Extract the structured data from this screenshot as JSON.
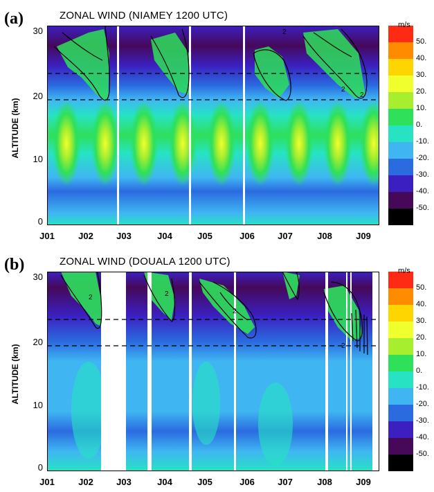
{
  "panels": [
    {
      "id": "a",
      "label": "(a)",
      "title": "ZONAL WIND (NIAMEY 1200 UTC)",
      "ylabel": "ALTITUDE (km)",
      "yticks": [
        "0",
        "10",
        "20",
        "30"
      ],
      "xticks": [
        "J01",
        "J02",
        "J03",
        "J04",
        "J05",
        "J06",
        "J07",
        "J08",
        "J09"
      ],
      "unit": "m/s",
      "colorbar": [
        "50.",
        "40.",
        "30.",
        "20.",
        "10.",
        "0.",
        "-10.",
        "-20.",
        "-30.",
        "-40.",
        "-50."
      ],
      "contour_labels": [
        "2",
        "2",
        "2"
      ]
    },
    {
      "id": "b",
      "label": "(b)",
      "title": "ZONAL WIND (DOUALA 1200 UTC)",
      "ylabel": "ALTITUDE (km)",
      "yticks": [
        "0",
        "10",
        "20",
        "30"
      ],
      "xticks": [
        "J01",
        "J02",
        "J03",
        "J04",
        "J05",
        "J06",
        "J07",
        "J08",
        "J09"
      ],
      "unit": "m/s",
      "colorbar": [
        "50.",
        "40.",
        "30.",
        "20.",
        "10.",
        "0.",
        "-10.",
        "-20.",
        "-30.",
        "-40.",
        "-50."
      ],
      "contour_labels": [
        "2",
        "2",
        "2",
        "2"
      ]
    }
  ],
  "colors": [
    "#ff2a14",
    "#ff8c00",
    "#ffd500",
    "#f0ff2e",
    "#a6ee2e",
    "#2ee05a",
    "#27e3c3",
    "#3fb6f2",
    "#2a6be0",
    "#3b1fc0",
    "#46095a",
    "#000000"
  ],
  "chart_data": [
    {
      "type": "heatmap",
      "title": "ZONAL WIND (NIAMEY 1200 UTC)",
      "xlabel": "",
      "ylabel": "ALTITUDE (km)",
      "x_categories": [
        "J01",
        "J02",
        "J03",
        "J04",
        "J05",
        "J06",
        "J07",
        "J08",
        "J09"
      ],
      "ylim": [
        0,
        30
      ],
      "color_scale": {
        "unit": "m/s",
        "min": -50,
        "max": 50,
        "step": 10
      },
      "reference_altitudes_km": [
        19,
        23
      ],
      "description_values": {
        "tropospheric_jet_core_km": 12,
        "tropospheric_jet_max_ms": 20,
        "stratospheric_easterlies_min_ms": -40
      }
    },
    {
      "type": "heatmap",
      "title": "ZONAL WIND (DOUALA 1200 UTC)",
      "xlabel": "",
      "ylabel": "ALTITUDE (km)",
      "x_categories": [
        "J01",
        "J02",
        "J03",
        "J04",
        "J05",
        "J06",
        "J07",
        "J08",
        "J09"
      ],
      "ylim": [
        0,
        30
      ],
      "color_scale": {
        "unit": "m/s",
        "min": -50,
        "max": 50,
        "step": 10
      },
      "reference_altitudes_km": [
        19,
        23
      ],
      "description_values": {
        "tropospheric_wind_ms": -10,
        "stratospheric_easterlies_min_ms": -40,
        "westerly_patches_ms": 20
      }
    }
  ]
}
